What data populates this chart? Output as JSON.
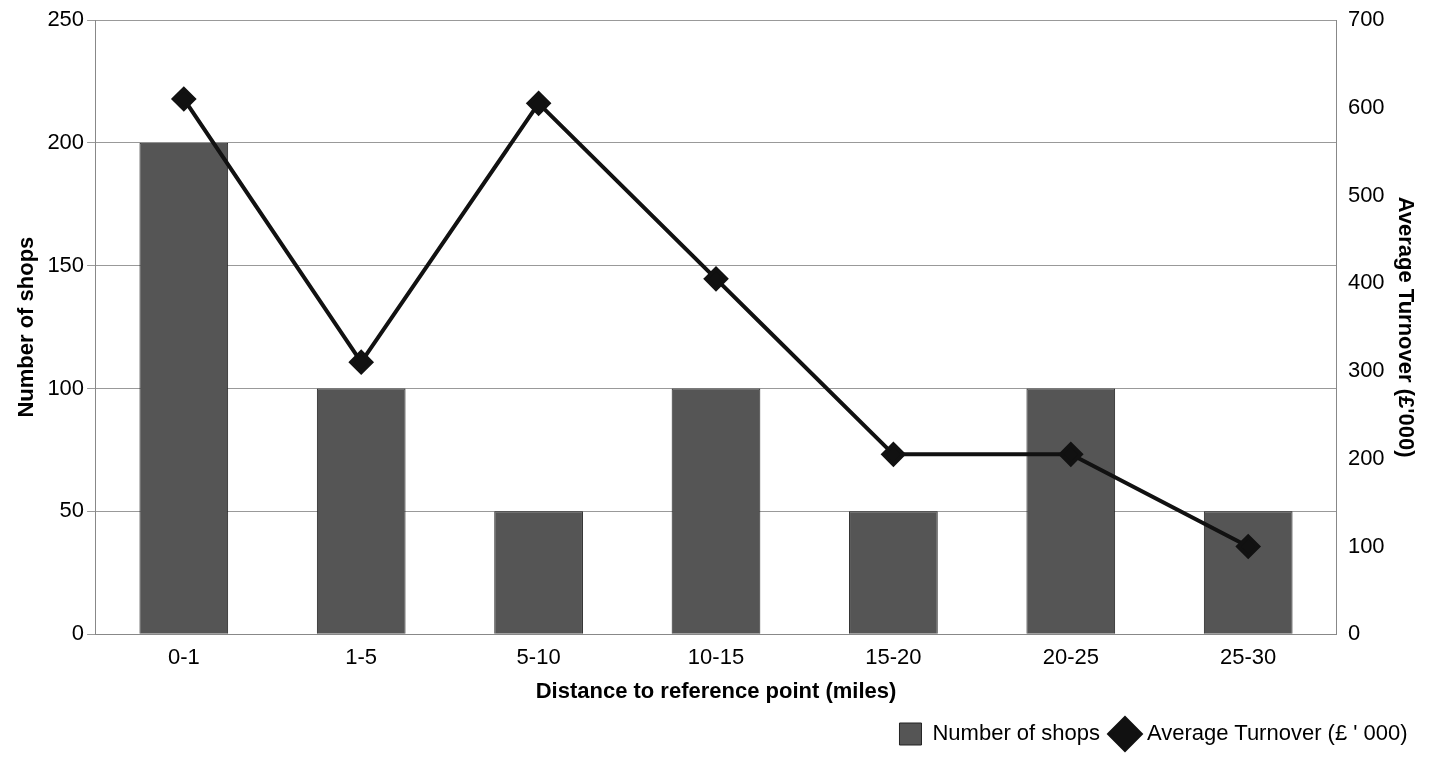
{
  "chart_data": {
    "type": "bar",
    "xlabel": "Distance to reference point (miles)",
    "ylabel": "Number of shops",
    "y2label": "Average Turnover (£'000)",
    "categories": [
      "0-1",
      "1-5",
      "5-10",
      "10-15",
      "15-20",
      "20-25",
      "25-30"
    ],
    "series": [
      {
        "name": "Number of shops",
        "color": "#555555",
        "values": [
          200,
          100,
          50,
          100,
          50,
          100,
          50
        ]
      },
      {
        "name": "Average Turnover (£ ' 000)",
        "type": "line",
        "axis": "y2",
        "color": "#111111",
        "values": [
          610,
          310,
          605,
          405,
          205,
          205,
          100
        ]
      }
    ],
    "ylim": [
      0,
      250
    ],
    "yticks": [
      0,
      50,
      100,
      150,
      200,
      250
    ],
    "y2lim": [
      0,
      700
    ],
    "y2ticks": [
      0,
      100,
      200,
      300,
      400,
      500,
      600,
      700
    ],
    "grid": "y",
    "legend": "bottom right",
    "marker": "diamond",
    "line_style": "solid"
  }
}
